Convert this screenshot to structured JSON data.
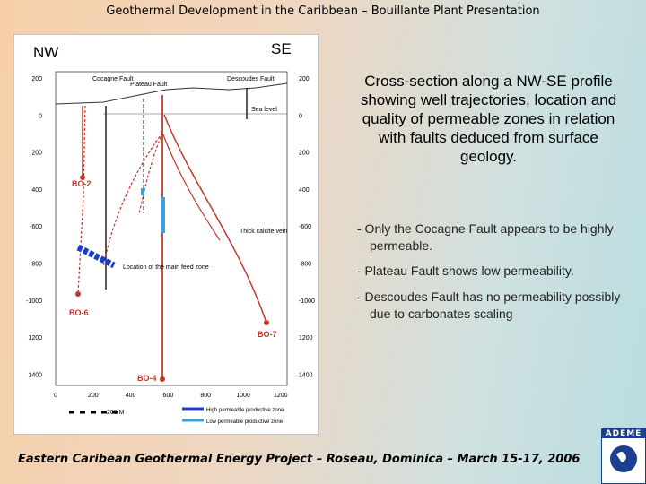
{
  "header": {
    "title": "Geothermal Development in the Caribbean – Bouillante Plant Presentation"
  },
  "figure": {
    "nw": "NW",
    "se": "SE",
    "left_axis": [
      "200",
      "0",
      "200",
      "400",
      "-600",
      "-800",
      "-1000",
      "1200",
      "1400"
    ],
    "right_axis": [
      "200",
      "0",
      "200",
      "400",
      "-600",
      "-800",
      "-1000",
      "1200",
      "1400"
    ],
    "bottom_axis": [
      "0",
      "200",
      "400",
      "600",
      "800",
      "1000",
      "1200"
    ],
    "faults": [
      "Cocagne Fault",
      "Plateau Fault",
      "Descoudes Fault"
    ],
    "sea_level": "Sea level",
    "wells": [
      "BO-2",
      "BO-6",
      "BO-4",
      "BO-7"
    ],
    "calcite": "Thick calcite vein",
    "feed_zone": "Location of the main feed zone",
    "scale": "200 M",
    "legend": [
      "High permeable productive zone",
      "Low permeable productive zone"
    ]
  },
  "description": "Cross-section along a NW-SE profile showing well trajectories, location and quality of permeable zones in relation with faults deduced from surface geology.",
  "bullets": [
    "- Only the Cocagne Fault appears to be highly permeable.",
    "- Plateau Fault shows low permeability.",
    "- Descoudes Fault has no permeability possibly due to carbonates scaling"
  ],
  "footer": "Eastern Caribean Geothermal Energy Project – Roseau, Dominica – March 15-17, 2006",
  "logo": "ADEME"
}
